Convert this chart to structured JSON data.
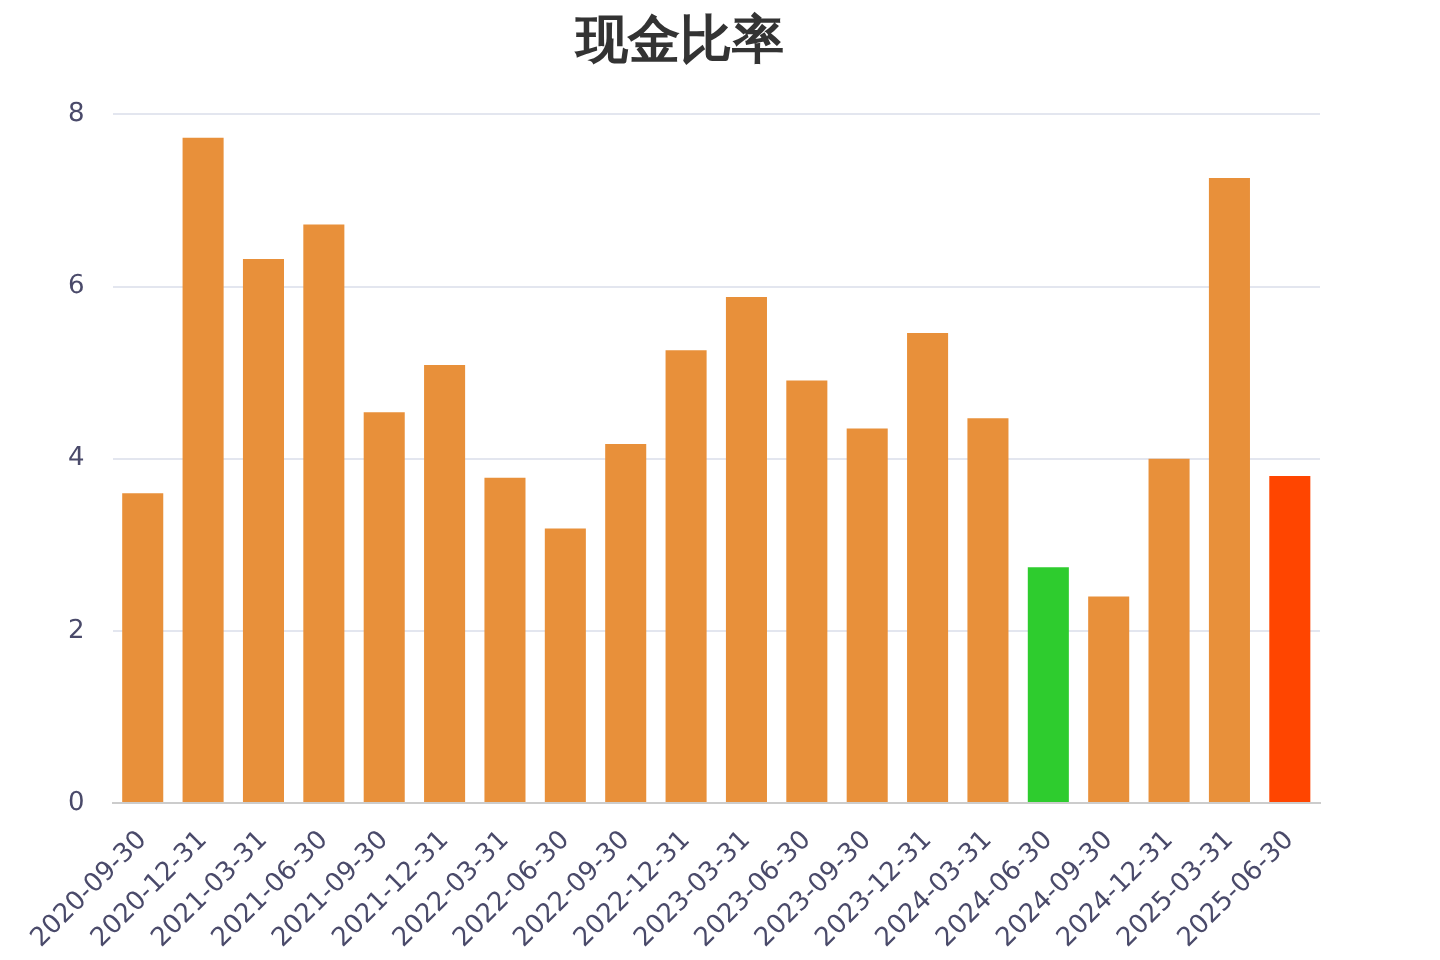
{
  "chart_data": {
    "type": "bar",
    "title": "现金比率",
    "categories": [
      "2020-09-30",
      "2020-12-31",
      "2021-03-31",
      "2021-06-30",
      "2021-09-30",
      "2021-12-31",
      "2022-03-31",
      "2022-06-30",
      "2022-09-30",
      "2022-12-31",
      "2023-03-31",
      "2023-06-30",
      "2023-09-30",
      "2023-12-31",
      "2024-03-31",
      "2024-06-30",
      "2024-09-30",
      "2024-12-31",
      "2025-03-31",
      "2025-06-30"
    ],
    "values": [
      3.6,
      7.73,
      6.32,
      6.72,
      4.54,
      5.09,
      3.78,
      3.19,
      4.17,
      5.26,
      5.88,
      4.91,
      4.35,
      5.46,
      4.47,
      2.74,
      2.4,
      4.0,
      7.26,
      3.8
    ],
    "colors": [
      "#e8903a",
      "#e8903a",
      "#e8903a",
      "#e8903a",
      "#e8903a",
      "#e8903a",
      "#e8903a",
      "#e8903a",
      "#e8903a",
      "#e8903a",
      "#e8903a",
      "#e8903a",
      "#e8903a",
      "#e8903a",
      "#e8903a",
      "#2ecc2e",
      "#e8903a",
      "#e8903a",
      "#e8903a",
      "#ff4500"
    ],
    "ylim": [
      0,
      8
    ],
    "yticks": [
      0,
      2,
      4,
      6,
      8
    ],
    "grid": "y"
  }
}
